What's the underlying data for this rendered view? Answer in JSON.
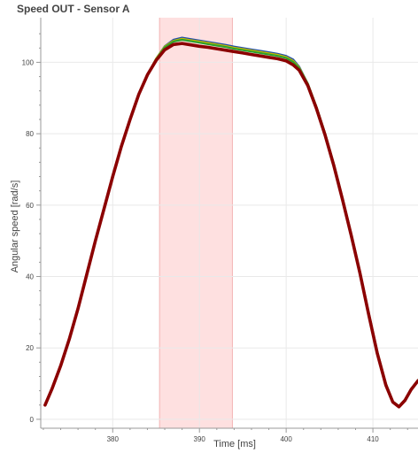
{
  "chart_data": {
    "type": "line",
    "title": "Speed OUT - Sensor A",
    "xlabel": "Time [ms]",
    "ylabel": "Angular speed [rad/s]",
    "xlim": [
      371.7,
      415.2
    ],
    "ylim": [
      -2.5,
      112.5
    ],
    "x_ticks": [
      380,
      390,
      400,
      410
    ],
    "y_ticks": [
      0,
      20,
      40,
      60,
      80,
      100
    ],
    "grid": true,
    "highlight_band": {
      "x": [
        385.4,
        393.8
      ],
      "color": "#fdd5d5"
    },
    "series": [
      {
        "color": "#1f4fa8",
        "points": [
          [
            372.2,
            4
          ],
          [
            373,
            8.5
          ],
          [
            374,
            15
          ],
          [
            375,
            22.5
          ],
          [
            376,
            31
          ],
          [
            377,
            40.5
          ],
          [
            378,
            50
          ],
          [
            379,
            59
          ],
          [
            380,
            68
          ],
          [
            381,
            76.5
          ],
          [
            382,
            84
          ],
          [
            383,
            91
          ],
          [
            384,
            96.5
          ],
          [
            385,
            101
          ],
          [
            386,
            104.5
          ],
          [
            387,
            106.3
          ],
          [
            388,
            106.9
          ],
          [
            389,
            106.5
          ],
          [
            390,
            106.1
          ],
          [
            391,
            105.7
          ],
          [
            392,
            105.3
          ],
          [
            393,
            104.9
          ],
          [
            394,
            104.4
          ],
          [
            395,
            104
          ],
          [
            396,
            103.6
          ],
          [
            397,
            103.2
          ],
          [
            398,
            102.8
          ],
          [
            399,
            102.4
          ],
          [
            400,
            101.8
          ],
          [
            400.8,
            100.8
          ],
          [
            401.5,
            98.8
          ],
          [
            402.5,
            94
          ],
          [
            403.5,
            87.5
          ],
          [
            404.5,
            80
          ],
          [
            405.5,
            71.5
          ],
          [
            406.5,
            62
          ],
          [
            407.5,
            52
          ],
          [
            408.5,
            41.5
          ],
          [
            409.5,
            30
          ],
          [
            410.5,
            19
          ],
          [
            411.5,
            10
          ],
          [
            412.3,
            5
          ],
          [
            413,
            3.7
          ],
          [
            413.7,
            5.5
          ],
          [
            414.4,
            8.5
          ],
          [
            415.2,
            11
          ]
        ]
      },
      {
        "color": "#c9b800",
        "points": [
          [
            372.2,
            4
          ],
          [
            373,
            8.5
          ],
          [
            374,
            15
          ],
          [
            375,
            22.5
          ],
          [
            376,
            31
          ],
          [
            377,
            40.5
          ],
          [
            378,
            50
          ],
          [
            379,
            59
          ],
          [
            380,
            68
          ],
          [
            381,
            76.5
          ],
          [
            382,
            84
          ],
          [
            383,
            91
          ],
          [
            384,
            96.5
          ],
          [
            385,
            101
          ],
          [
            386,
            104.4
          ],
          [
            387,
            106
          ],
          [
            388,
            106.6
          ],
          [
            389,
            106.2
          ],
          [
            390,
            105.8
          ],
          [
            391,
            105.4
          ],
          [
            392,
            105
          ],
          [
            393,
            104.6
          ],
          [
            394,
            104.1
          ],
          [
            395,
            103.7
          ],
          [
            396,
            103.3
          ],
          [
            397,
            102.9
          ],
          [
            398,
            102.5
          ],
          [
            399,
            102.1
          ],
          [
            400,
            101.5
          ],
          [
            400.8,
            100.4
          ],
          [
            401.5,
            98.6
          ],
          [
            402.5,
            94
          ],
          [
            403.5,
            87.5
          ],
          [
            404.5,
            80
          ],
          [
            405.5,
            71.5
          ],
          [
            406.5,
            62
          ],
          [
            407.5,
            52
          ],
          [
            408.5,
            41.5
          ],
          [
            409.5,
            30
          ],
          [
            410.5,
            19
          ],
          [
            411.5,
            10
          ],
          [
            412.3,
            5
          ],
          [
            413,
            3.7
          ],
          [
            413.7,
            5.5
          ],
          [
            414.4,
            8.5
          ],
          [
            415.2,
            11
          ]
        ]
      },
      {
        "color": "#2ca02c",
        "points": [
          [
            372.2,
            4
          ],
          [
            373,
            8.5
          ],
          [
            374,
            15
          ],
          [
            375,
            22.5
          ],
          [
            376,
            31
          ],
          [
            377,
            40.5
          ],
          [
            378,
            50
          ],
          [
            379,
            59
          ],
          [
            380,
            68
          ],
          [
            381,
            76.5
          ],
          [
            382,
            84
          ],
          [
            383,
            91
          ],
          [
            384,
            96.5
          ],
          [
            385,
            100.8
          ],
          [
            386,
            104.2
          ],
          [
            387,
            105.8
          ],
          [
            388,
            106.3
          ],
          [
            389,
            105.9
          ],
          [
            390,
            105.5
          ],
          [
            391,
            105.1
          ],
          [
            392,
            104.7
          ],
          [
            393,
            104.3
          ],
          [
            394,
            103.8
          ],
          [
            395,
            103.4
          ],
          [
            396,
            103
          ],
          [
            397,
            102.6
          ],
          [
            398,
            102.2
          ],
          [
            399,
            101.8
          ],
          [
            400,
            101.2
          ],
          [
            400.8,
            100.1
          ],
          [
            401.5,
            98.4
          ],
          [
            402.5,
            94
          ],
          [
            403.5,
            87.5
          ],
          [
            404.5,
            80
          ],
          [
            405.5,
            71.5
          ],
          [
            406.5,
            62
          ],
          [
            407.5,
            52
          ],
          [
            408.5,
            41.5
          ],
          [
            409.5,
            30
          ],
          [
            410.5,
            19
          ],
          [
            411.5,
            10
          ],
          [
            412.3,
            5
          ],
          [
            413,
            3.7
          ],
          [
            413.7,
            5.5
          ],
          [
            414.4,
            8.5
          ],
          [
            415.2,
            11
          ]
        ]
      },
      {
        "color": "#8b0000",
        "points": [
          [
            372.2,
            4
          ],
          [
            373,
            8.5
          ],
          [
            374,
            15
          ],
          [
            375,
            22.5
          ],
          [
            376,
            31
          ],
          [
            377,
            40.5
          ],
          [
            378,
            50
          ],
          [
            379,
            59
          ],
          [
            380,
            68
          ],
          [
            381,
            76.5
          ],
          [
            382,
            84
          ],
          [
            383,
            91
          ],
          [
            384,
            96.5
          ],
          [
            385,
            100.5
          ],
          [
            386,
            103.5
          ],
          [
            387,
            105
          ],
          [
            388,
            105.3
          ],
          [
            389,
            104.9
          ],
          [
            390,
            104.5
          ],
          [
            391,
            104.2
          ],
          [
            392,
            103.8
          ],
          [
            393,
            103.4
          ],
          [
            394,
            103
          ],
          [
            395,
            102.6
          ],
          [
            396,
            102.2
          ],
          [
            397,
            101.8
          ],
          [
            398,
            101.4
          ],
          [
            399,
            101
          ],
          [
            400,
            100.4
          ],
          [
            400.8,
            99.3
          ],
          [
            401.5,
            97.8
          ],
          [
            402.5,
            93.5
          ],
          [
            403.5,
            87
          ],
          [
            404.5,
            79.5
          ],
          [
            405.5,
            71
          ],
          [
            406.5,
            61.5
          ],
          [
            407.5,
            51.5
          ],
          [
            408.5,
            41
          ],
          [
            409.5,
            29.5
          ],
          [
            410.5,
            18.5
          ],
          [
            411.5,
            9.5
          ],
          [
            412.3,
            4.8
          ],
          [
            413,
            3.5
          ],
          [
            413.7,
            5.3
          ],
          [
            414.4,
            8.3
          ],
          [
            415.2,
            10.8
          ]
        ]
      }
    ]
  }
}
